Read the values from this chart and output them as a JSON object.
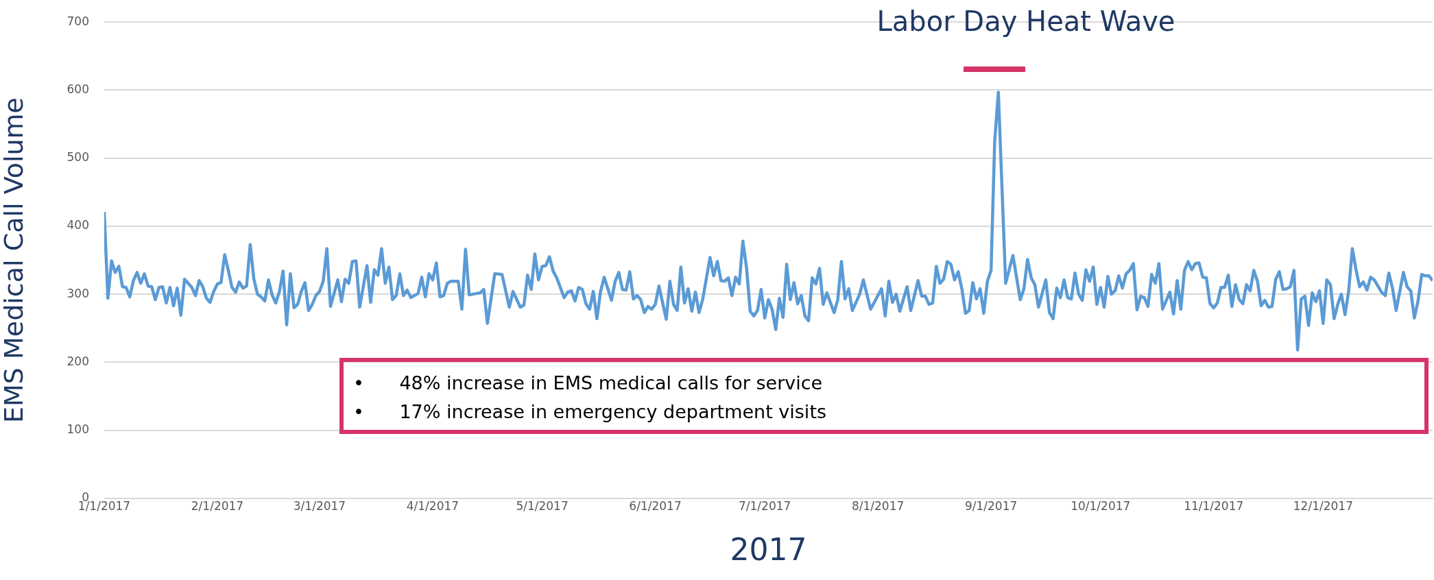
{
  "chart_data": {
    "type": "line",
    "xlabel": "2017",
    "ylabel": "EMS Medical Call Volume",
    "ylim": [
      0,
      700
    ],
    "yticks": [
      0,
      100,
      200,
      300,
      400,
      500,
      600,
      700
    ],
    "xlim": [
      "2017-01-01",
      "2017-12-31"
    ],
    "xticks": [
      {
        "value": "2017-01-01",
        "label": "1/1/2017"
      },
      {
        "value": "2017-02-01",
        "label": "2/1/2017"
      },
      {
        "value": "2017-03-01",
        "label": "3/1/2017"
      },
      {
        "value": "2017-04-01",
        "label": "4/1/2017"
      },
      {
        "value": "2017-05-01",
        "label": "5/1/2017"
      },
      {
        "value": "2017-06-01",
        "label": "6/1/2017"
      },
      {
        "value": "2017-07-01",
        "label": "7/1/2017"
      },
      {
        "value": "2017-08-01",
        "label": "8/1/2017"
      },
      {
        "value": "2017-09-01",
        "label": "9/1/2017"
      },
      {
        "value": "2017-10-01",
        "label": "10/1/2017"
      },
      {
        "value": "2017-11-01",
        "label": "11/1/2017"
      },
      {
        "value": "2017-12-01",
        "label": "12/1/2017"
      }
    ],
    "grid": "y",
    "legend": false,
    "marker": "none",
    "line_style": "solid",
    "annotations": [
      "Labor Day Heat Wave",
      "•      48% increase in EMS medical calls for service",
      "•      17% increase in emergency department visits"
    ],
    "series": [
      {
        "color": "#5b9bd5",
        "x": [
          "2017-01-01",
          "2017-01-02",
          "2017-01-03",
          "2017-01-04",
          "2017-01-05",
          "2017-01-06",
          "2017-01-07",
          "2017-01-08",
          "2017-01-09",
          "2017-01-10",
          "2017-01-11",
          "2017-01-12",
          "2017-01-13",
          "2017-01-14",
          "2017-01-15",
          "2017-01-16",
          "2017-01-17",
          "2017-01-18",
          "2017-01-19",
          "2017-01-20",
          "2017-01-21",
          "2017-01-22",
          "2017-01-23",
          "2017-01-25",
          "2017-01-26",
          "2017-01-27",
          "2017-01-28",
          "2017-01-29",
          "2017-01-30",
          "2017-01-31",
          "2017-02-01",
          "2017-02-02",
          "2017-02-03",
          "2017-02-04",
          "2017-02-05",
          "2017-02-06",
          "2017-02-07",
          "2017-02-08",
          "2017-02-09",
          "2017-02-10",
          "2017-02-11",
          "2017-02-12",
          "2017-02-13",
          "2017-02-14",
          "2017-02-15",
          "2017-02-16",
          "2017-02-17",
          "2017-02-18",
          "2017-02-19",
          "2017-02-20",
          "2017-02-21",
          "2017-02-22",
          "2017-02-23",
          "2017-02-24",
          "2017-02-25",
          "2017-02-26",
          "2017-02-27",
          "2017-02-28",
          "2017-03-01",
          "2017-03-02",
          "2017-03-03",
          "2017-03-04",
          "2017-03-06",
          "2017-03-07",
          "2017-03-08",
          "2017-03-09",
          "2017-03-10",
          "2017-03-11",
          "2017-03-12",
          "2017-03-14",
          "2017-03-15",
          "2017-03-16",
          "2017-03-17",
          "2017-03-18",
          "2017-03-19",
          "2017-03-20",
          "2017-03-21",
          "2017-03-22",
          "2017-03-23",
          "2017-03-24",
          "2017-03-25",
          "2017-03-26",
          "2017-03-28",
          "2017-03-29",
          "2017-03-30",
          "2017-03-31",
          "2017-04-01",
          "2017-04-02",
          "2017-04-03",
          "2017-04-04",
          "2017-04-05",
          "2017-04-06",
          "2017-04-08",
          "2017-04-09",
          "2017-04-10",
          "2017-04-11",
          "2017-04-14",
          "2017-04-15",
          "2017-04-16",
          "2017-04-18",
          "2017-04-20",
          "2017-04-22",
          "2017-04-23",
          "2017-04-25",
          "2017-04-26",
          "2017-04-27",
          "2017-04-28",
          "2017-04-29",
          "2017-04-30",
          "2017-05-01",
          "2017-05-02",
          "2017-05-03",
          "2017-05-04",
          "2017-05-05",
          "2017-05-07",
          "2017-05-08",
          "2017-05-09",
          "2017-05-10",
          "2017-05-11",
          "2017-05-12",
          "2017-05-13",
          "2017-05-14",
          "2017-05-15",
          "2017-05-16",
          "2017-05-17",
          "2017-05-18",
          "2017-05-20",
          "2017-05-21",
          "2017-05-22",
          "2017-05-23",
          "2017-05-24",
          "2017-05-25",
          "2017-05-26",
          "2017-05-27",
          "2017-05-28",
          "2017-05-29",
          "2017-05-30",
          "2017-05-31",
          "2017-06-01",
          "2017-06-02",
          "2017-06-04",
          "2017-06-05",
          "2017-06-06",
          "2017-06-07",
          "2017-06-08",
          "2017-06-09",
          "2017-06-10",
          "2017-06-11",
          "2017-06-12",
          "2017-06-13",
          "2017-06-14",
          "2017-06-16",
          "2017-06-17",
          "2017-06-18",
          "2017-06-19",
          "2017-06-20",
          "2017-06-21",
          "2017-06-22",
          "2017-06-23",
          "2017-06-24",
          "2017-06-25",
          "2017-06-26",
          "2017-06-27",
          "2017-06-28",
          "2017-06-29",
          "2017-06-30",
          "2017-07-01",
          "2017-07-02",
          "2017-07-03",
          "2017-07-04",
          "2017-07-05",
          "2017-07-06",
          "2017-07-07",
          "2017-07-08",
          "2017-07-09",
          "2017-07-10",
          "2017-07-11",
          "2017-07-12",
          "2017-07-13",
          "2017-07-14",
          "2017-07-15",
          "2017-07-16",
          "2017-07-17",
          "2017-07-18",
          "2017-07-20",
          "2017-07-21",
          "2017-07-22",
          "2017-07-23",
          "2017-07-24",
          "2017-07-25",
          "2017-07-27",
          "2017-07-28",
          "2017-07-30",
          "2017-08-02",
          "2017-08-03",
          "2017-08-04",
          "2017-08-05",
          "2017-08-06",
          "2017-08-07",
          "2017-08-09",
          "2017-08-10",
          "2017-08-12",
          "2017-08-13",
          "2017-08-14",
          "2017-08-15",
          "2017-08-16",
          "2017-08-17",
          "2017-08-18",
          "2017-08-19",
          "2017-08-20",
          "2017-08-21",
          "2017-08-22",
          "2017-08-23",
          "2017-08-24",
          "2017-08-25",
          "2017-08-26",
          "2017-08-27",
          "2017-08-28",
          "2017-08-29",
          "2017-08-30",
          "2017-08-31",
          "2017-09-01",
          "2017-09-02",
          "2017-09-03",
          "2017-09-05",
          "2017-09-07",
          "2017-09-09",
          "2017-09-10",
          "2017-09-11",
          "2017-09-12",
          "2017-09-13",
          "2017-09-14",
          "2017-09-16",
          "2017-09-17",
          "2017-09-18",
          "2017-09-19",
          "2017-09-20",
          "2017-09-21",
          "2017-09-22",
          "2017-09-23",
          "2017-09-24",
          "2017-09-25",
          "2017-09-26",
          "2017-09-27",
          "2017-09-28",
          "2017-09-29",
          "2017-09-30",
          "2017-10-01",
          "2017-10-02",
          "2017-10-03",
          "2017-10-04",
          "2017-10-05",
          "2017-10-06",
          "2017-10-07",
          "2017-10-08",
          "2017-10-09",
          "2017-10-10",
          "2017-10-11",
          "2017-10-12",
          "2017-10-13",
          "2017-10-14",
          "2017-10-15",
          "2017-10-16",
          "2017-10-17",
          "2017-10-18",
          "2017-10-20",
          "2017-10-21",
          "2017-10-22",
          "2017-10-23",
          "2017-10-24",
          "2017-10-25",
          "2017-10-26",
          "2017-10-27",
          "2017-10-28",
          "2017-10-29",
          "2017-10-30",
          "2017-10-31",
          "2017-11-01",
          "2017-11-02",
          "2017-11-03",
          "2017-11-04",
          "2017-11-05",
          "2017-11-06",
          "2017-11-07",
          "2017-11-08",
          "2017-11-09",
          "2017-11-10",
          "2017-11-11",
          "2017-11-12",
          "2017-11-13",
          "2017-11-14",
          "2017-11-15",
          "2017-11-16",
          "2017-11-17",
          "2017-11-18",
          "2017-11-19",
          "2017-11-20",
          "2017-11-21",
          "2017-11-22",
          "2017-11-23",
          "2017-11-24",
          "2017-11-25",
          "2017-11-26",
          "2017-11-27",
          "2017-11-28",
          "2017-11-29",
          "2017-11-30",
          "2017-12-01",
          "2017-12-02",
          "2017-12-03",
          "2017-12-04",
          "2017-12-05",
          "2017-12-06",
          "2017-12-07",
          "2017-12-08",
          "2017-12-09",
          "2017-12-10",
          "2017-12-11",
          "2017-12-12",
          "2017-12-13",
          "2017-12-14",
          "2017-12-15",
          "2017-12-16",
          "2017-12-17",
          "2017-12-18",
          "2017-12-19",
          "2017-12-20",
          "2017-12-21",
          "2017-12-22",
          "2017-12-23",
          "2017-12-24",
          "2017-12-25",
          "2017-12-26",
          "2017-12-27",
          "2017-12-28",
          "2017-12-29",
          "2017-12-30",
          "2017-12-31"
        ],
        "values": [
          421,
          294,
          349,
          332,
          341,
          311,
          310,
          296,
          320,
          332,
          316,
          330,
          312,
          311,
          292,
          310,
          311,
          287,
          310,
          283,
          309,
          269,
          322,
          310,
          298,
          320,
          311,
          294,
          288,
          304,
          315,
          317,
          358,
          335,
          310,
          303,
          318,
          309,
          312,
          373,
          322,
          300,
          296,
          290,
          321,
          299,
          287,
          304,
          334,
          255,
          330,
          280,
          285,
          304,
          317,
          276,
          285,
          298,
          304,
          319,
          367,
          282,
          321,
          289,
          322,
          316,
          348,
          349,
          281,
          342,
          288,
          336,
          328,
          367,
          316,
          340,
          292,
          298,
          330,
          298,
          306,
          295,
          301,
          325,
          296,
          330,
          321,
          346,
          296,
          298,
          316,
          319,
          319,
          278,
          366,
          299,
          302,
          307,
          257,
          330,
          329,
          281,
          304,
          281,
          284,
          328,
          307,
          359,
          321,
          341,
          342,
          355,
          334,
          324,
          295,
          303,
          305,
          290,
          310,
          307,
          286,
          278,
          304,
          264,
          304,
          325,
          291,
          319,
          332,
          307,
          306,
          333,
          293,
          298,
          292,
          273,
          282,
          278,
          285,
          312,
          263,
          319,
          285,
          276,
          340,
          287,
          308,
          275,
          303,
          273,
          293,
          354,
          327,
          348,
          320,
          319,
          324,
          298,
          325,
          315,
          378,
          339,
          275,
          268,
          276,
          307,
          265,
          292,
          278,
          248,
          294,
          266,
          344,
          292,
          317,
          286,
          298,
          268,
          261,
          324,
          315,
          338,
          285,
          302,
          273,
          292,
          348,
          293,
          308,
          276,
          300,
          321,
          278,
          308,
          268,
          319,
          288,
          300,
          275,
          311,
          276,
          320,
          297,
          297,
          285,
          287,
          341,
          316,
          322,
          348,
          344,
          321,
          333,
          308,
          272,
          276,
          317,
          293,
          308,
          272,
          319,
          335,
          525,
          597,
          316,
          357,
          292,
          308,
          351,
          324,
          314,
          281,
          321,
          273,
          264,
          309,
          295,
          321,
          295,
          293,
          331,
          300,
          291,
          336,
          319,
          340,
          285,
          310,
          281,
          326,
          300,
          305,
          327,
          309,
          330,
          335,
          345,
          277,
          297,
          295,
          282,
          329,
          316,
          345,
          278,
          303,
          271,
          320,
          278,
          335,
          348,
          336,
          345,
          346,
          325,
          324,
          286,
          280,
          287,
          310,
          310,
          328,
          282,
          314,
          292,
          286,
          314,
          305,
          335,
          319,
          283,
          291,
          281,
          282,
          322,
          333,
          307,
          308,
          311,
          335,
          218,
          293,
          297,
          254,
          302,
          289,
          305,
          257,
          321,
          314,
          264,
          285,
          300,
          270,
          305,
          367,
          336,
          311,
          318,
          306,
          325,
          321,
          312,
          303,
          298,
          331,
          309,
          276,
          304,
          332,
          311,
          305,
          265,
          290,
          329,
          327,
          327,
          320
        ]
      }
    ]
  }
}
